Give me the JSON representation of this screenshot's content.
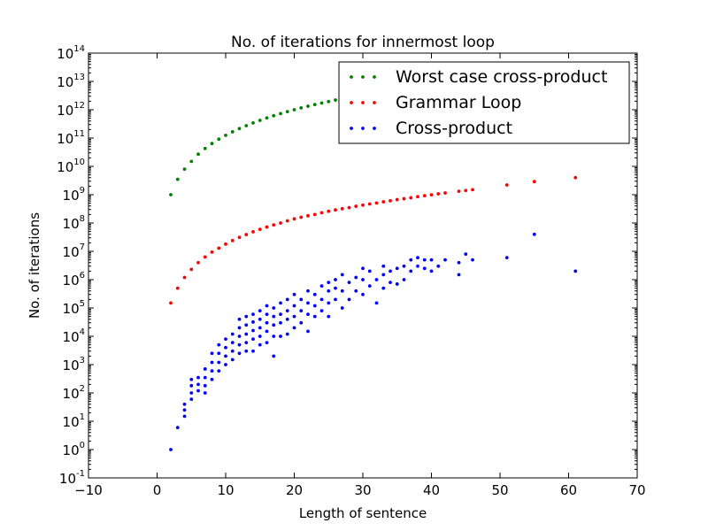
{
  "chart_data": {
    "type": "scatter",
    "title": "No. of iterations for innermost loop",
    "xlabel": "Length of sentence",
    "ylabel": "No. of iterations",
    "xlim": [
      -10,
      70
    ],
    "ylim": [
      0.1,
      100000000000000.0
    ],
    "yscale": "log",
    "grid": false,
    "legend_position": "top-right",
    "x_ticks": [
      {
        "value": -10,
        "label": "−10"
      },
      {
        "value": 0,
        "label": "0"
      },
      {
        "value": 10,
        "label": "10"
      },
      {
        "value": 20,
        "label": "20"
      },
      {
        "value": 30,
        "label": "30"
      },
      {
        "value": 40,
        "label": "40"
      },
      {
        "value": 50,
        "label": "50"
      },
      {
        "value": 60,
        "label": "60"
      },
      {
        "value": 70,
        "label": "70"
      }
    ],
    "y_ticks": [
      {
        "value": 0.1,
        "base": "10",
        "exp": "-1"
      },
      {
        "value": 1,
        "base": "10",
        "exp": "0"
      },
      {
        "value": 10,
        "base": "10",
        "exp": "1"
      },
      {
        "value": 100,
        "base": "10",
        "exp": "2"
      },
      {
        "value": 1000,
        "base": "10",
        "exp": "3"
      },
      {
        "value": 10000,
        "base": "10",
        "exp": "4"
      },
      {
        "value": 100000,
        "base": "10",
        "exp": "5"
      },
      {
        "value": 1000000,
        "base": "10",
        "exp": "6"
      },
      {
        "value": 10000000,
        "base": "10",
        "exp": "7"
      },
      {
        "value": 100000000,
        "base": "10",
        "exp": "8"
      },
      {
        "value": 1000000000,
        "base": "10",
        "exp": "9"
      },
      {
        "value": 10000000000,
        "base": "10",
        "exp": "10"
      },
      {
        "value": 100000000000,
        "base": "10",
        "exp": "11"
      },
      {
        "value": 1000000000000,
        "base": "10",
        "exp": "12"
      },
      {
        "value": 10000000000000,
        "base": "10",
        "exp": "13"
      },
      {
        "value": 100000000000000,
        "base": "10",
        "exp": "14"
      }
    ],
    "series": [
      {
        "name": "Worst case cross-product",
        "color": "#008000",
        "points": [
          [
            2,
            1000000000.0
          ],
          [
            3,
            3500000000.0
          ],
          [
            4,
            8000000000.0
          ],
          [
            5,
            15000000000.0
          ],
          [
            6,
            27000000000.0
          ],
          [
            7,
            43000000000.0
          ],
          [
            8,
            64000000000.0
          ],
          [
            9,
            91000000000.0
          ],
          [
            10,
            125000000000.0
          ],
          [
            11,
            166000000000.0
          ],
          [
            12,
            216000000000.0
          ],
          [
            13,
            274000000000.0
          ],
          [
            14,
            343000000000.0
          ],
          [
            15,
            422000000000.0
          ],
          [
            16,
            512000000000.0
          ],
          [
            17,
            614000000000.0
          ],
          [
            18,
            729000000000.0
          ],
          [
            19,
            857000000000.0
          ],
          [
            20,
            1000000000000.0
          ],
          [
            21,
            1160000000000.0
          ],
          [
            22,
            1330000000000.0
          ],
          [
            23,
            1520000000000.0
          ],
          [
            24,
            1730000000000.0
          ],
          [
            25,
            1950000000000.0
          ],
          [
            26,
            2200000000000.0
          ]
        ]
      },
      {
        "name": "Grammar Loop",
        "color": "#ff0000",
        "points": [
          [
            2,
            150000.0
          ],
          [
            3,
            500000.0
          ],
          [
            4,
            1200000.0
          ],
          [
            5,
            2300000.0
          ],
          [
            6,
            4000000.0
          ],
          [
            7,
            6300000.0
          ],
          [
            8,
            9400000.0
          ],
          [
            9,
            13000000.0
          ],
          [
            10,
            18000000.0
          ],
          [
            11,
            24000000.0
          ],
          [
            12,
            31000000.0
          ],
          [
            13,
            39000000.0
          ],
          [
            14,
            49000000.0
          ],
          [
            15,
            60000000.0
          ],
          [
            16,
            72000000.0
          ],
          [
            17,
            86000000.0
          ],
          [
            18,
            100000000.0
          ],
          [
            19,
            120000000.0
          ],
          [
            20,
            140000000.0
          ],
          [
            21,
            160000000.0
          ],
          [
            22,
            180000000.0
          ],
          [
            23,
            200000000.0
          ],
          [
            24,
            230000000.0
          ],
          [
            25,
            260000000.0
          ],
          [
            26,
            290000000.0
          ],
          [
            27,
            320000000.0
          ],
          [
            28,
            350000000.0
          ],
          [
            29,
            390000000.0
          ],
          [
            30,
            430000000.0
          ],
          [
            31,
            470000000.0
          ],
          [
            32,
            510000000.0
          ],
          [
            33,
            560000000.0
          ],
          [
            34,
            610000000.0
          ],
          [
            35,
            670000000.0
          ],
          [
            36,
            720000000.0
          ],
          [
            37,
            780000000.0
          ],
          [
            38,
            850000000.0
          ],
          [
            39,
            920000000.0
          ],
          [
            40,
            990000000.0
          ],
          [
            41,
            1070000000.0
          ],
          [
            42,
            1150000000.0
          ],
          [
            44,
            1320000000.0
          ],
          [
            45,
            1410000000.0
          ],
          [
            46,
            1500000000.0
          ],
          [
            51,
            2200000000.0
          ],
          [
            55,
            2900000000.0
          ],
          [
            61,
            4000000000.0
          ]
        ]
      },
      {
        "name": "Cross-product",
        "color": "#0000ff",
        "points": [
          [
            2,
            1
          ],
          [
            3,
            6
          ],
          [
            4,
            15
          ],
          [
            4,
            25
          ],
          [
            4,
            40
          ],
          [
            5,
            60
          ],
          [
            5,
            100
          ],
          [
            5,
            180
          ],
          [
            5,
            300
          ],
          [
            6,
            120
          ],
          [
            6,
            200
          ],
          [
            6,
            350
          ],
          [
            7,
            100
          ],
          [
            7,
            180
          ],
          [
            7,
            350
          ],
          [
            7,
            700
          ],
          [
            8,
            300
          ],
          [
            8,
            600
          ],
          [
            8,
            1200
          ],
          [
            8,
            2500
          ],
          [
            9,
            600
          ],
          [
            9,
            1200
          ],
          [
            9,
            2500
          ],
          [
            9,
            5000
          ],
          [
            10,
            1000
          ],
          [
            10,
            2000
          ],
          [
            10,
            4000
          ],
          [
            10,
            8000
          ],
          [
            11,
            1500
          ],
          [
            11,
            3000
          ],
          [
            11,
            6000
          ],
          [
            11,
            12000
          ],
          [
            12,
            2500
          ],
          [
            12,
            5000
          ],
          [
            12,
            10000
          ],
          [
            12,
            20000
          ],
          [
            12,
            40000
          ],
          [
            13,
            3000
          ],
          [
            13,
            6000
          ],
          [
            13,
            12000
          ],
          [
            13,
            25000
          ],
          [
            13,
            50000
          ],
          [
            14,
            3000
          ],
          [
            14,
            8000
          ],
          [
            14,
            16000
          ],
          [
            14,
            32000
          ],
          [
            14,
            60000
          ],
          [
            15,
            5000
          ],
          [
            15,
            10000
          ],
          [
            15,
            20000
          ],
          [
            15,
            40000
          ],
          [
            15,
            80000
          ],
          [
            16,
            6000
          ],
          [
            16,
            15000
          ],
          [
            16,
            30000
          ],
          [
            16,
            60000
          ],
          [
            16,
            120000
          ],
          [
            17,
            2000
          ],
          [
            17,
            10000
          ],
          [
            17,
            25000
          ],
          [
            17,
            50000
          ],
          [
            17,
            100000
          ],
          [
            18,
            10000
          ],
          [
            18,
            30000
          ],
          [
            18,
            60000
          ],
          [
            18,
            150000
          ],
          [
            19,
            12000
          ],
          [
            19,
            40000
          ],
          [
            19,
            80000
          ],
          [
            19,
            200000
          ],
          [
            20,
            20000
          ],
          [
            20,
            50000
          ],
          [
            20,
            120000
          ],
          [
            20,
            300000
          ],
          [
            21,
            30000
          ],
          [
            21,
            80000
          ],
          [
            21,
            200000
          ],
          [
            22,
            15000
          ],
          [
            22,
            60000
          ],
          [
            22,
            150000
          ],
          [
            22,
            400000
          ],
          [
            23,
            50000
          ],
          [
            23,
            120000
          ],
          [
            23,
            300000
          ],
          [
            24,
            80000
          ],
          [
            24,
            200000
          ],
          [
            24,
            600000
          ],
          [
            25,
            50000
          ],
          [
            25,
            150000
          ],
          [
            25,
            400000
          ],
          [
            25,
            800000
          ],
          [
            26,
            200000
          ],
          [
            26,
            500000
          ],
          [
            26,
            1000000
          ],
          [
            27,
            100000
          ],
          [
            27,
            400000
          ],
          [
            27,
            1500000
          ],
          [
            28,
            200000
          ],
          [
            28,
            800000
          ],
          [
            29,
            400000
          ],
          [
            29,
            1200000
          ],
          [
            30,
            300000
          ],
          [
            30,
            1000000
          ],
          [
            30,
            2500000
          ],
          [
            31,
            600000
          ],
          [
            31,
            2000000
          ],
          [
            32,
            150000
          ],
          [
            32,
            1000000
          ],
          [
            33,
            500000
          ],
          [
            33,
            1500000
          ],
          [
            33,
            3000000
          ],
          [
            34,
            800000
          ],
          [
            34,
            2000000
          ],
          [
            35,
            700000
          ],
          [
            35,
            2500000
          ],
          [
            36,
            1000000
          ],
          [
            36,
            3000000
          ],
          [
            37,
            2000000
          ],
          [
            37,
            5000000
          ],
          [
            38,
            3000000
          ],
          [
            38,
            6000000
          ],
          [
            39,
            2500000
          ],
          [
            39,
            5000000
          ],
          [
            40,
            2000000
          ],
          [
            40,
            5000000
          ],
          [
            41,
            3000000
          ],
          [
            42,
            5000000
          ],
          [
            44,
            1500000
          ],
          [
            44,
            4000000
          ],
          [
            45,
            8000000
          ],
          [
            46,
            5000000
          ],
          [
            51,
            6000000
          ],
          [
            55,
            40000000
          ],
          [
            61,
            2000000
          ]
        ]
      }
    ]
  }
}
